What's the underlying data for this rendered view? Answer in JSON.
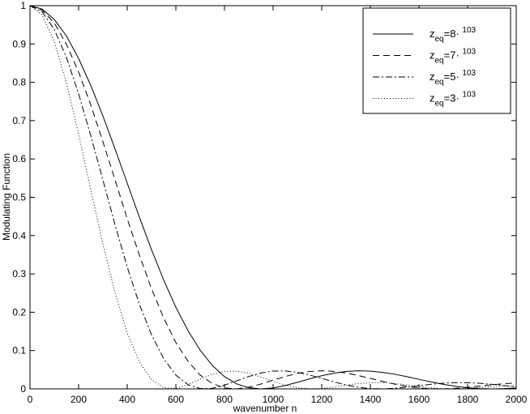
{
  "chart_data": {
    "type": "line",
    "x_label": "wavenumber n",
    "y_label": "Modulating Function",
    "x": [
      0,
      50,
      100,
      150,
      200,
      250,
      300,
      350,
      400,
      450,
      500,
      550,
      600,
      650,
      700,
      750,
      800,
      850,
      900,
      950,
      1000,
      1050,
      1100,
      1150,
      1200,
      1250,
      1300,
      1350,
      1400,
      1450,
      1500,
      1550,
      1600,
      1650,
      1700,
      1750,
      1800,
      1850,
      1900,
      1950,
      2000
    ],
    "series": [
      {
        "name": "zeq=8· 103",
        "color": "#000000",
        "linestyle": "solid",
        "values": [
          1,
          0.991,
          0.964,
          0.921,
          0.862,
          0.792,
          0.712,
          0.626,
          0.537,
          0.448,
          0.363,
          0.284,
          0.213,
          0.152,
          0.101,
          0.061,
          0.032,
          0.013,
          0.003,
          0,
          0.0025,
          0.0087,
          0.0171,
          0.0261,
          0.0344,
          0.041,
          0.0454,
          0.0472,
          0.0463,
          0.0432,
          0.0382,
          0.0319,
          0.025,
          0.0182,
          0.0119,
          0.0068,
          0.003,
          0.0007,
          0,
          0.0007,
          0.0024
        ]
      },
      {
        "name": "zeq=7· 103",
        "color": "#000000",
        "linestyle": "dashed",
        "values": [
          1,
          0.988,
          0.955,
          0.899,
          0.827,
          0.741,
          0.645,
          0.545,
          0.444,
          0.349,
          0.261,
          0.185,
          0.121,
          0.072,
          0.036,
          0.014,
          0.0025,
          0.0001,
          0.0044,
          0.0127,
          0.0227,
          0.0324,
          0.0403,
          0.0454,
          0.0472,
          0.0457,
          0.0414,
          0.035,
          0.0274,
          0.0196,
          0.0124,
          0.0065,
          0.0024,
          0.0003,
          0.0001,
          0.0016,
          0.0042,
          0.0074,
          0.0106,
          0.0135,
          0.0155
        ]
      },
      {
        "name": "zeq=5· 103",
        "color": "#000000",
        "linestyle": "dashdot",
        "values": [
          1,
          0.984,
          0.938,
          0.865,
          0.77,
          0.661,
          0.545,
          0.428,
          0.318,
          0.221,
          0.141,
          0.079,
          0.036,
          0.011,
          0.0008,
          0.0016,
          0.0096,
          0.021,
          0.0324,
          0.0414,
          0.0464,
          0.0468,
          0.0431,
          0.0361,
          0.0274,
          0.0183,
          0.0102,
          0.0042,
          0.0008,
          0,
          0.0016,
          0.0047,
          0.0085,
          0.0121,
          0.0149,
          0.0163,
          0.0162,
          0.0146,
          0.012,
          0.0087,
          0.0054
        ]
      },
      {
        "name": "zeq=3· 103",
        "color": "#000000",
        "linestyle": "dotted",
        "values": [
          1,
          0.976,
          0.906,
          0.798,
          0.665,
          0.52,
          0.378,
          0.25,
          0.146,
          0.07,
          0.024,
          0.0029,
          0.0011,
          0.0111,
          0.0255,
          0.0384,
          0.046,
          0.0466,
          0.041,
          0.0311,
          0.0198,
          0.0097,
          0.0029,
          0.0001,
          0.0011,
          0.0048,
          0.0095,
          0.0137,
          0.0161,
          0.0162,
          0.0141,
          0.0104,
          0.0063,
          0.0027,
          0.0005,
          0,
          0.0015,
          0.0037,
          0.006,
          0.0078,
          0.0084
        ]
      }
    ],
    "xlim": [
      0,
      2000
    ],
    "xticks": [
      0,
      200,
      400,
      600,
      800,
      1000,
      1200,
      1400,
      1600,
      1800,
      2000
    ],
    "ylim": [
      0,
      1
    ],
    "yticks": [
      0,
      0.1,
      0.2,
      0.3,
      0.4,
      0.5,
      0.6,
      0.7,
      0.8,
      0.9,
      1
    ],
    "grid": false,
    "legend": "upper right"
  }
}
